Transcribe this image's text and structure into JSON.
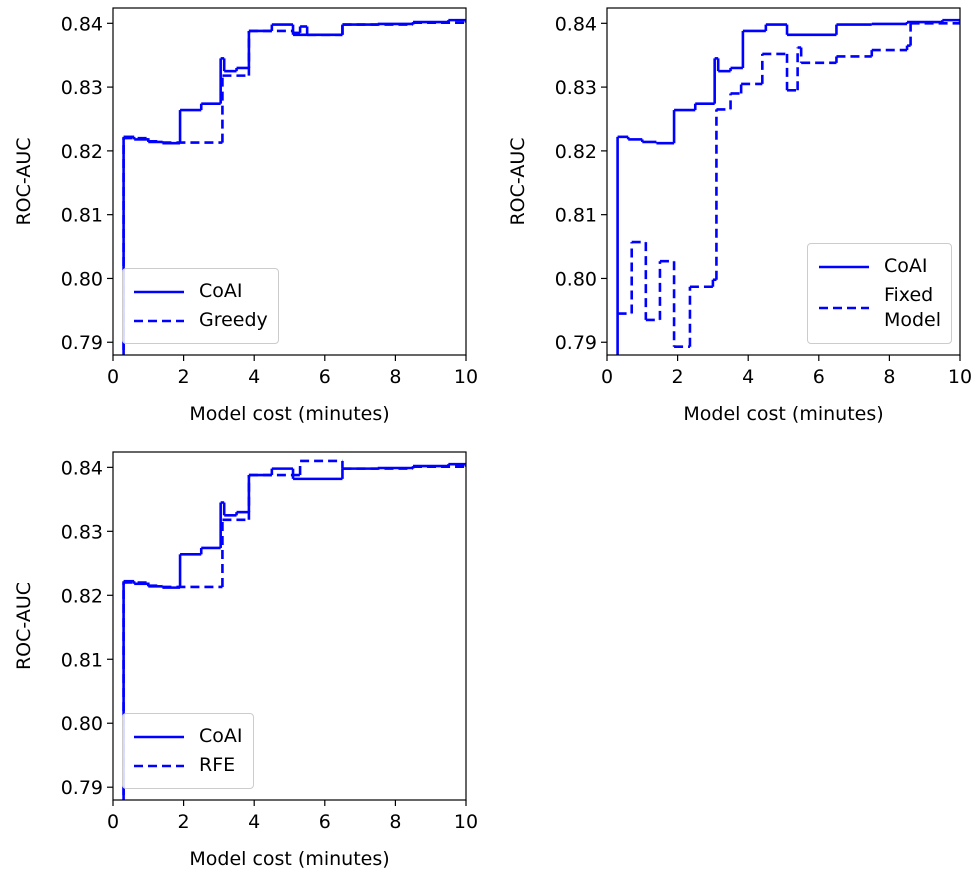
{
  "chart_data": [
    {
      "type": "line",
      "drawstyle": "steps-post",
      "xlabel": "Model cost (minutes)",
      "ylabel": "ROC-AUC",
      "xlim": [
        0,
        10
      ],
      "ylim": [
        0.788,
        0.8424
      ],
      "xticks": [
        0,
        2,
        4,
        6,
        8,
        10
      ],
      "yticks": [
        0.79,
        {
          "value": 0.8,
          "label": "0.80"
        },
        0.81,
        0.82,
        0.83,
        0.84
      ],
      "legend": "lower left",
      "series": [
        {
          "name": "CoAI",
          "color": "#0000ff",
          "linestyle": "solid",
          "x": [
            0.28,
            0.3,
            0.6,
            1.0,
            1.4,
            1.9,
            2.5,
            3.05,
            3.15,
            3.5,
            3.85,
            4.5,
            5.1,
            6.5,
            7.5,
            8.5,
            9.5,
            10
          ],
          "values": [
            0.78,
            0.8222,
            0.8218,
            0.8214,
            0.8212,
            0.8264,
            0.8274,
            0.8345,
            0.8325,
            0.833,
            0.8388,
            0.8398,
            0.8382,
            0.8398,
            0.8399,
            0.8402,
            0.8405,
            0.8404
          ]
        },
        {
          "name": "Greedy",
          "color": "#0000ff",
          "linestyle": "dashed",
          "x": [
            0.28,
            0.3,
            1.0,
            1.4,
            3.1,
            3.85,
            5.1,
            5.3,
            5.5,
            6.5,
            8.5,
            10
          ],
          "values": [
            0.78,
            0.822,
            0.8215,
            0.8213,
            0.8318,
            0.8388,
            0.8385,
            0.8395,
            0.8382,
            0.8398,
            0.8401,
            0.8404
          ]
        }
      ]
    },
    {
      "type": "line",
      "drawstyle": "steps-post",
      "xlabel": "Model cost (minutes)",
      "ylabel": "ROC-AUC",
      "xlim": [
        0,
        10
      ],
      "ylim": [
        0.788,
        0.8424
      ],
      "xticks": [
        0,
        2,
        4,
        6,
        8,
        10
      ],
      "yticks": [
        0.79,
        {
          "value": 0.8,
          "label": "0.80"
        },
        0.81,
        0.82,
        0.83,
        0.84
      ],
      "legend": "lower right",
      "series": [
        {
          "name": "CoAI",
          "color": "#0000ff",
          "linestyle": "solid",
          "x": [
            0.28,
            0.3,
            0.6,
            1.0,
            1.4,
            1.9,
            2.5,
            3.05,
            3.15,
            3.5,
            3.85,
            4.5,
            5.1,
            6.5,
            7.5,
            8.5,
            9.5,
            10
          ],
          "values": [
            0.78,
            0.8222,
            0.8218,
            0.8214,
            0.8212,
            0.8264,
            0.8274,
            0.8345,
            0.8325,
            0.833,
            0.8388,
            0.8398,
            0.8382,
            0.8398,
            0.8399,
            0.8402,
            0.8405,
            0.8404
          ]
        },
        {
          "name": "Fixed\nModel",
          "color": "#0000ff",
          "linestyle": "dashed",
          "x": [
            0.3,
            0.7,
            1.1,
            1.5,
            1.9,
            2.35,
            3.0,
            3.1,
            3.5,
            3.8,
            4.4,
            5.1,
            5.4,
            5.5,
            6.5,
            7.5,
            8.5,
            8.6,
            10
          ],
          "values": [
            0.7945,
            0.8057,
            0.7935,
            0.8027,
            0.7893,
            0.7987,
            0.7998,
            0.8265,
            0.829,
            0.8305,
            0.8352,
            0.8295,
            0.8362,
            0.8338,
            0.8348,
            0.8358,
            0.8365,
            0.84,
            0.8403
          ]
        }
      ]
    },
    {
      "type": "line",
      "drawstyle": "steps-post",
      "xlabel": "Model cost (minutes)",
      "ylabel": "ROC-AUC",
      "xlim": [
        0,
        10
      ],
      "ylim": [
        0.788,
        0.8424
      ],
      "xticks": [
        0,
        2,
        4,
        6,
        8,
        10
      ],
      "yticks": [
        0.79,
        {
          "value": 0.8,
          "label": "0.80"
        },
        0.81,
        0.82,
        0.83,
        0.84
      ],
      "legend": "lower left",
      "series": [
        {
          "name": "CoAI",
          "color": "#0000ff",
          "linestyle": "solid",
          "x": [
            0.28,
            0.3,
            0.6,
            1.0,
            1.4,
            1.9,
            2.5,
            3.05,
            3.15,
            3.5,
            3.85,
            4.5,
            5.1,
            6.5,
            7.5,
            8.5,
            9.5,
            10
          ],
          "values": [
            0.78,
            0.8222,
            0.8218,
            0.8214,
            0.8212,
            0.8264,
            0.8274,
            0.8345,
            0.8325,
            0.833,
            0.8388,
            0.8398,
            0.8382,
            0.8398,
            0.8399,
            0.8402,
            0.8405,
            0.8404
          ]
        },
        {
          "name": "RFE",
          "color": "#0000ff",
          "linestyle": "dashed",
          "x": [
            0.28,
            0.3,
            1.0,
            1.4,
            3.1,
            3.85,
            5.3,
            6.5,
            8.5,
            10
          ],
          "values": [
            0.78,
            0.822,
            0.8215,
            0.8213,
            0.8318,
            0.8388,
            0.841,
            0.8398,
            0.8401,
            0.8404
          ]
        }
      ]
    }
  ]
}
